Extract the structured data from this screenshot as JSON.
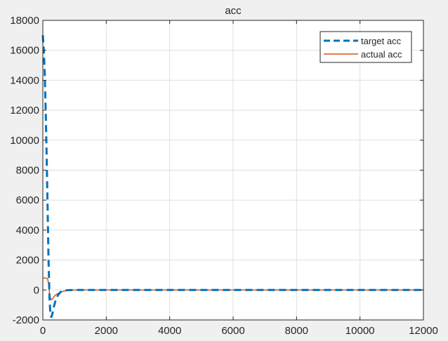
{
  "chart_data": {
    "type": "line",
    "title": "acc",
    "xlabel": "",
    "ylabel": "",
    "xlim": [
      0,
      12000
    ],
    "ylim": [
      -2000,
      18000
    ],
    "xticks": [
      0,
      2000,
      4000,
      6000,
      8000,
      10000,
      12000
    ],
    "yticks": [
      -2000,
      0,
      2000,
      4000,
      6000,
      8000,
      10000,
      12000,
      14000,
      16000,
      18000
    ],
    "xtick_labels": [
      "0",
      "2000",
      "4000",
      "6000",
      "8000",
      "10000",
      "12000"
    ],
    "ytick_labels": [
      "-2000",
      "0",
      "2000",
      "4000",
      "6000",
      "8000",
      "10000",
      "12000",
      "14000",
      "16000",
      "18000"
    ],
    "grid": true,
    "legend_position": "top-right",
    "series": [
      {
        "name": "target acc",
        "color": "#0072bd",
        "style": "dashed",
        "x": [
          0,
          30,
          60,
          90,
          120,
          150,
          180,
          210,
          240,
          270,
          300,
          350,
          400,
          450,
          500,
          550,
          600,
          700,
          800,
          1000,
          1500,
          2000,
          4000,
          6000,
          8000,
          10000,
          12000
        ],
        "y": [
          17000,
          16000,
          14500,
          12000,
          9000,
          5500,
          2000,
          -500,
          -1700,
          -1800,
          -1600,
          -1100,
          -700,
          -450,
          -280,
          -150,
          -80,
          -30,
          -10,
          0,
          0,
          0,
          0,
          0,
          0,
          0,
          0
        ]
      },
      {
        "name": "actual acc",
        "color": "#d95319",
        "style": "solid",
        "x": [
          0,
          50,
          100,
          150,
          180,
          210,
          240,
          270,
          300,
          350,
          400,
          500,
          600,
          700,
          800,
          900,
          1000,
          1200,
          1500,
          2000,
          4000,
          6000,
          8000,
          10000,
          12000
        ],
        "y": [
          800,
          800,
          800,
          750,
          400,
          -200,
          -550,
          -650,
          -600,
          -450,
          -330,
          -200,
          -120,
          -60,
          -30,
          -10,
          0,
          0,
          0,
          0,
          0,
          0,
          0,
          0,
          0
        ]
      }
    ]
  }
}
